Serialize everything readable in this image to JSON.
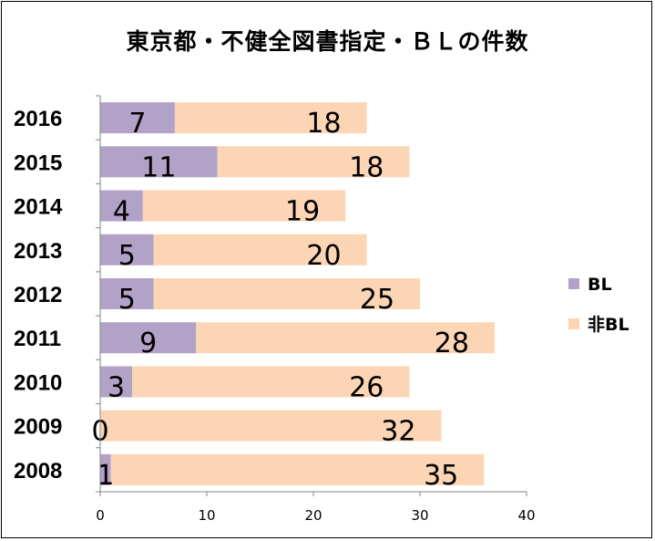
{
  "chart_data": {
    "type": "bar",
    "orientation": "horizontal",
    "stacked": true,
    "title": "東京都・不健全図書指定・ＢＬの件数",
    "categories": [
      "2016",
      "2015",
      "2014",
      "2013",
      "2012",
      "2011",
      "2010",
      "2009",
      "2008"
    ],
    "series": [
      {
        "name": "BL",
        "color": "#b3a2c7",
        "values": [
          7,
          11,
          4,
          5,
          5,
          9,
          3,
          0,
          1
        ]
      },
      {
        "name": "非BL",
        "color": "#fcd5b5",
        "values": [
          18,
          18,
          19,
          20,
          25,
          28,
          26,
          32,
          35
        ]
      }
    ],
    "xlim": [
      0,
      40
    ],
    "xticks": [
      "0",
      "10",
      "20",
      "30",
      "40"
    ],
    "gridlines": false,
    "legend_position": "right"
  }
}
